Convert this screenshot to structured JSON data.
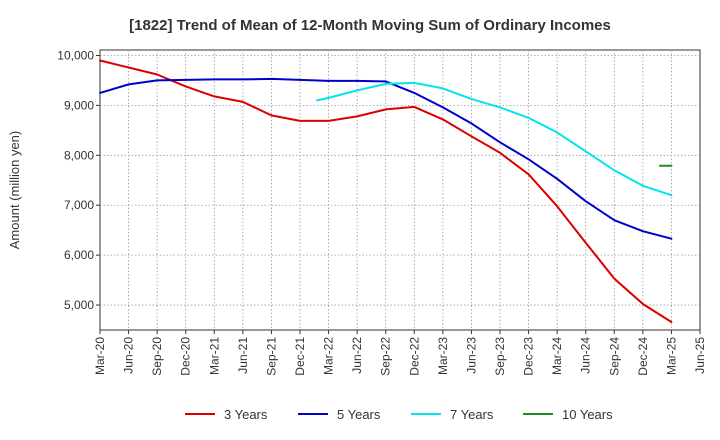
{
  "chart_data": {
    "type": "line",
    "title": "[1822]  Trend of Mean of 12-Month Moving Sum of Ordinary Incomes",
    "xlabel": "",
    "ylabel": "Amount (million yen)",
    "ylim": [
      4500,
      10000
    ],
    "yticks": [
      5000,
      6000,
      7000,
      8000,
      9000,
      10000
    ],
    "ytick_labels": [
      "5,000",
      "6,000",
      "7,000",
      "8,000",
      "9,000",
      "10,000"
    ],
    "xtick_labels": [
      "Mar-20",
      "Jun-20",
      "Sep-20",
      "Dec-20",
      "Mar-21",
      "Jun-21",
      "Sep-21",
      "Dec-21",
      "Mar-22",
      "Jun-22",
      "Sep-22",
      "Dec-22",
      "Mar-23",
      "Jun-23",
      "Sep-23",
      "Dec-23",
      "Mar-24",
      "Jun-24",
      "Sep-24",
      "Dec-24",
      "Mar-25",
      "Jun-25"
    ],
    "grid": true,
    "legend_position": "bottom",
    "series": [
      {
        "name": "3 Years",
        "color": "#dd0000",
        "points": [
          [
            0,
            9900
          ],
          [
            1,
            9760
          ],
          [
            2,
            9620
          ],
          [
            3,
            9380
          ],
          [
            4,
            9180
          ],
          [
            5,
            9070
          ],
          [
            6,
            8800
          ],
          [
            7,
            8690
          ],
          [
            8,
            8690
          ],
          [
            9,
            8780
          ],
          [
            10,
            8920
          ],
          [
            11,
            8970
          ],
          [
            12,
            8720
          ],
          [
            13,
            8380
          ],
          [
            14,
            8050
          ],
          [
            15,
            7620
          ],
          [
            16,
            6980
          ],
          [
            17,
            6250
          ],
          [
            18,
            5530
          ],
          [
            19,
            5020
          ],
          [
            20,
            4660
          ]
        ]
      },
      {
        "name": "5 Years",
        "color": "#0000cc",
        "points": [
          [
            0,
            9250
          ],
          [
            1,
            9420
          ],
          [
            2,
            9500
          ],
          [
            3,
            9510
          ],
          [
            4,
            9520
          ],
          [
            5,
            9520
          ],
          [
            6,
            9530
          ],
          [
            7,
            9510
          ],
          [
            8,
            9490
          ],
          [
            9,
            9490
          ],
          [
            10,
            9480
          ],
          [
            11,
            9250
          ],
          [
            12,
            8960
          ],
          [
            13,
            8640
          ],
          [
            14,
            8260
          ],
          [
            15,
            7920
          ],
          [
            16,
            7530
          ],
          [
            17,
            7080
          ],
          [
            18,
            6700
          ],
          [
            19,
            6480
          ],
          [
            20,
            6330
          ]
        ]
      },
      {
        "name": "7 Years",
        "color": "#00e5ee",
        "points": [
          [
            7.6,
            9100
          ],
          [
            8,
            9150
          ],
          [
            9,
            9300
          ],
          [
            10,
            9430
          ],
          [
            11,
            9450
          ],
          [
            12,
            9340
          ],
          [
            13,
            9130
          ],
          [
            14,
            8960
          ],
          [
            15,
            8750
          ],
          [
            16,
            8460
          ],
          [
            17,
            8080
          ],
          [
            18,
            7700
          ],
          [
            19,
            7390
          ],
          [
            20,
            7200
          ]
        ]
      },
      {
        "name": "10 Years",
        "color": "#228b22",
        "points": [
          [
            19.6,
            7790
          ],
          [
            20,
            7790
          ]
        ]
      }
    ]
  }
}
